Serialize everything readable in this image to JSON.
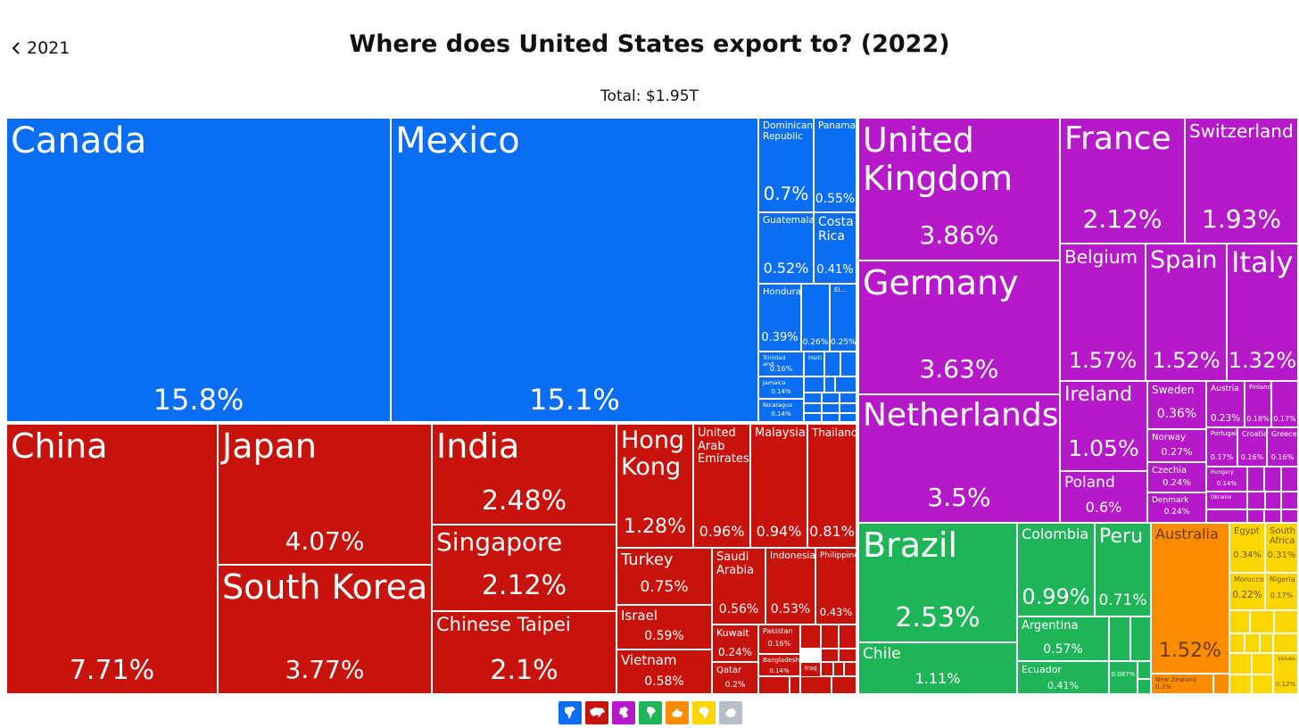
{
  "nav": {
    "back_label": "2021"
  },
  "header": {
    "title": "Where does United States export to? (2022)",
    "total": "Total: $1.95T"
  },
  "colors": {
    "north_america": "#0a6ef5",
    "asia": "#c8130c",
    "europe": "#b519c9",
    "south_america": "#1db558",
    "oceania": "#fb8c00",
    "africa": "#fdd600",
    "antarctica": "#b8bec8"
  },
  "legend": [
    {
      "icon": "north-america-icon",
      "region": "north_america"
    },
    {
      "icon": "asia-icon",
      "region": "asia"
    },
    {
      "icon": "europe-icon",
      "region": "europe"
    },
    {
      "icon": "south-america-icon",
      "region": "south_america"
    },
    {
      "icon": "oceania-icon",
      "region": "oceania"
    },
    {
      "icon": "africa-icon",
      "region": "africa"
    },
    {
      "icon": "antarctica-icon",
      "region": "antarctica"
    }
  ],
  "chart_data": {
    "type": "treemap",
    "title": "Where does United States export to? (2022)",
    "subtitle": "Total: $1.95T",
    "unit": "share of total exports (%)",
    "items": [
      {
        "name": "Canada",
        "label": "15.8%",
        "value": 15.8,
        "region": "north_america"
      },
      {
        "name": "Mexico",
        "label": "15.1%",
        "value": 15.1,
        "region": "north_america"
      },
      {
        "name": "Dominican Republic",
        "label": "0.7%",
        "value": 0.7,
        "region": "north_america"
      },
      {
        "name": "Panama",
        "label": "0.55%",
        "value": 0.55,
        "region": "north_america"
      },
      {
        "name": "Guatemala",
        "label": "0.52%",
        "value": 0.52,
        "region": "north_america"
      },
      {
        "name": "Costa Rica",
        "label": "0.41%",
        "value": 0.41,
        "region": "north_america"
      },
      {
        "name": "Honduras",
        "label": "0.39%",
        "value": 0.39,
        "region": "north_america"
      },
      {
        "name": "",
        "label": "0.26%",
        "value": 0.26,
        "region": "north_america"
      },
      {
        "name": "El...",
        "label": "0.25%",
        "value": 0.25,
        "region": "north_america"
      },
      {
        "name": "Trinidad and...",
        "label": "0.16%",
        "value": 0.16,
        "region": "north_america"
      },
      {
        "name": "Haiti",
        "label": "",
        "value": 0.13,
        "region": "north_america"
      },
      {
        "name": "Jamaica",
        "label": "0.14%",
        "value": 0.14,
        "region": "north_america"
      },
      {
        "name": "Nicaragua",
        "label": "0.14%",
        "value": 0.14,
        "region": "north_america"
      },
      {
        "name": "China",
        "label": "7.71%",
        "value": 7.71,
        "region": "asia"
      },
      {
        "name": "Japan",
        "label": "4.07%",
        "value": 4.07,
        "region": "asia"
      },
      {
        "name": "South Korea",
        "label": "3.77%",
        "value": 3.77,
        "region": "asia"
      },
      {
        "name": "India",
        "label": "2.48%",
        "value": 2.48,
        "region": "asia"
      },
      {
        "name": "Singapore",
        "label": "2.12%",
        "value": 2.12,
        "region": "asia"
      },
      {
        "name": "Chinese Taipei",
        "label": "2.1%",
        "value": 2.1,
        "region": "asia"
      },
      {
        "name": "Hong Kong",
        "label": "1.28%",
        "value": 1.28,
        "region": "asia"
      },
      {
        "name": "United Arab Emirates",
        "label": "0.96%",
        "value": 0.96,
        "region": "asia"
      },
      {
        "name": "Malaysia",
        "label": "0.94%",
        "value": 0.94,
        "region": "asia"
      },
      {
        "name": "Thailand",
        "label": "0.81%",
        "value": 0.81,
        "region": "asia"
      },
      {
        "name": "Turkey",
        "label": "0.75%",
        "value": 0.75,
        "region": "asia"
      },
      {
        "name": "Israel",
        "label": "0.59%",
        "value": 0.59,
        "region": "asia"
      },
      {
        "name": "Vietnam",
        "label": "0.58%",
        "value": 0.58,
        "region": "asia"
      },
      {
        "name": "Saudi Arabia",
        "label": "0.56%",
        "value": 0.56,
        "region": "asia"
      },
      {
        "name": "Indonesia",
        "label": "0.53%",
        "value": 0.53,
        "region": "asia"
      },
      {
        "name": "Philippines",
        "label": "0.43%",
        "value": 0.43,
        "region": "asia"
      },
      {
        "name": "Kuwait",
        "label": "0.24%",
        "value": 0.24,
        "region": "asia"
      },
      {
        "name": "Qatar",
        "label": "0.2%",
        "value": 0.2,
        "region": "asia"
      },
      {
        "name": "Pakistan",
        "label": "0.16%",
        "value": 0.16,
        "region": "asia"
      },
      {
        "name": "Bangladesh",
        "label": "0.14%",
        "value": 0.14,
        "region": "asia"
      },
      {
        "name": "Iraq",
        "label": "",
        "value": 0.1,
        "region": "asia"
      },
      {
        "name": "United Kingdom",
        "label": "3.86%",
        "value": 3.86,
        "region": "europe"
      },
      {
        "name": "Germany",
        "label": "3.63%",
        "value": 3.63,
        "region": "europe"
      },
      {
        "name": "Netherlands",
        "label": "3.5%",
        "value": 3.5,
        "region": "europe"
      },
      {
        "name": "France",
        "label": "2.12%",
        "value": 2.12,
        "region": "europe"
      },
      {
        "name": "Switzerland",
        "label": "1.93%",
        "value": 1.93,
        "region": "europe"
      },
      {
        "name": "Belgium",
        "label": "1.57%",
        "value": 1.57,
        "region": "europe"
      },
      {
        "name": "Spain",
        "label": "1.52%",
        "value": 1.52,
        "region": "europe"
      },
      {
        "name": "Italy",
        "label": "1.32%",
        "value": 1.32,
        "region": "europe"
      },
      {
        "name": "Ireland",
        "label": "1.05%",
        "value": 1.05,
        "region": "europe"
      },
      {
        "name": "Poland",
        "label": "0.6%",
        "value": 0.6,
        "region": "europe"
      },
      {
        "name": "Sweden",
        "label": "0.36%",
        "value": 0.36,
        "region": "europe"
      },
      {
        "name": "Norway",
        "label": "0.27%",
        "value": 0.27,
        "region": "europe"
      },
      {
        "name": "Czechia",
        "label": "0.24%",
        "value": 0.24,
        "region": "europe"
      },
      {
        "name": "Denmark",
        "label": "0.24%",
        "value": 0.24,
        "region": "europe"
      },
      {
        "name": "Austria",
        "label": "0.23%",
        "value": 0.23,
        "region": "europe"
      },
      {
        "name": "Finland",
        "label": "0.18%",
        "value": 0.18,
        "region": "europe"
      },
      {
        "name": "",
        "label": "0.17%",
        "value": 0.17,
        "region": "europe"
      },
      {
        "name": "Portugal",
        "label": "0.17%",
        "value": 0.17,
        "region": "europe"
      },
      {
        "name": "Croatia",
        "label": "0.16%",
        "value": 0.16,
        "region": "europe"
      },
      {
        "name": "Greece",
        "label": "0.16%",
        "value": 0.16,
        "region": "europe"
      },
      {
        "name": "Hungary",
        "label": "0.14%",
        "value": 0.14,
        "region": "europe"
      },
      {
        "name": "Ukraine",
        "label": "",
        "value": 0.12,
        "region": "europe"
      },
      {
        "name": "Brazil",
        "label": "2.53%",
        "value": 2.53,
        "region": "south_america"
      },
      {
        "name": "Chile",
        "label": "1.11%",
        "value": 1.11,
        "region": "south_america"
      },
      {
        "name": "Colombia",
        "label": "0.99%",
        "value": 0.99,
        "region": "south_america"
      },
      {
        "name": "Peru",
        "label": "0.71%",
        "value": 0.71,
        "region": "south_america"
      },
      {
        "name": "Argentina",
        "label": "0.57%",
        "value": 0.57,
        "region": "south_america"
      },
      {
        "name": "Ecuador",
        "label": "0.41%",
        "value": 0.41,
        "region": "south_america"
      },
      {
        "name": "",
        "label": "0.087%",
        "value": 0.087,
        "region": "south_america"
      },
      {
        "name": "Australia",
        "label": "1.52%",
        "value": 1.52,
        "region": "oceania"
      },
      {
        "name": "New Zealand",
        "label": "0.2%",
        "value": 0.2,
        "region": "oceania"
      },
      {
        "name": "Egypt",
        "label": "0.34%",
        "value": 0.34,
        "region": "africa"
      },
      {
        "name": "South Africa",
        "label": "0.31%",
        "value": 0.31,
        "region": "africa"
      },
      {
        "name": "Morocco",
        "label": "0.22%",
        "value": 0.22,
        "region": "africa"
      },
      {
        "name": "Nigeria",
        "label": "0.17%",
        "value": 0.17,
        "region": "africa"
      },
      {
        "name": "Values...",
        "label": "0.12%",
        "value": 0.12,
        "region": "africa"
      }
    ]
  }
}
